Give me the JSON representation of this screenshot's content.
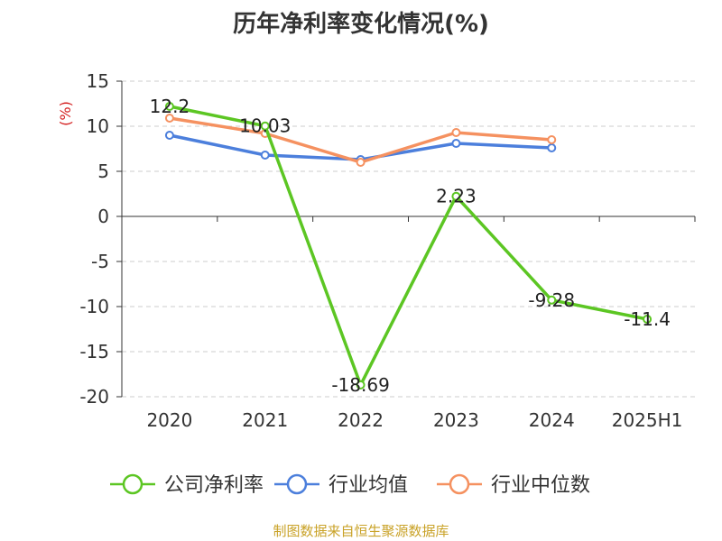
{
  "title": "历年净利率变化情况(%)",
  "source": "制图数据来自恒生聚源数据库",
  "chart_data": {
    "type": "line",
    "title": "历年净利率变化情况(%)",
    "ylabel": "(%)",
    "xlabel": "",
    "categories": [
      "2020",
      "2021",
      "2022",
      "2023",
      "2024",
      "2025H1"
    ],
    "ylim": [
      -20,
      15
    ],
    "yticks": [
      15,
      10,
      5,
      0,
      -5,
      -10,
      -15,
      -20
    ],
    "grid": true,
    "legend_position": "bottom",
    "series": [
      {
        "name": "公司净利率",
        "color": "#5cc623",
        "values": [
          12.2,
          10.03,
          -18.69,
          2.23,
          -9.28,
          -11.4
        ],
        "labels": [
          "12.2",
          "10.03",
          "-18.69",
          "2.23",
          "-9.28",
          "-11.4"
        ]
      },
      {
        "name": "行业均值",
        "color": "#4c7fdc",
        "values": [
          9.0,
          6.8,
          6.3,
          8.1,
          7.6,
          null
        ]
      },
      {
        "name": "行业中位数",
        "color": "#f59160",
        "values": [
          10.9,
          9.2,
          6.0,
          9.3,
          8.5,
          null
        ]
      }
    ]
  }
}
